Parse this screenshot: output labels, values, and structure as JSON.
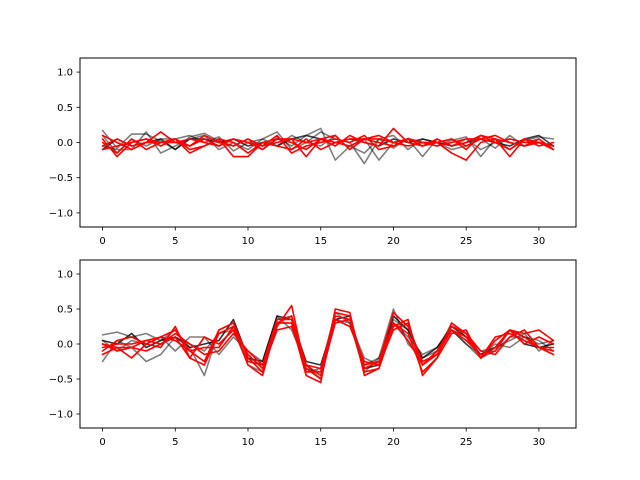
{
  "chart_data": [
    {
      "type": "line",
      "title": "",
      "xlabel": "",
      "ylabel": "",
      "xlim": [
        -1.55,
        32.55
      ],
      "ylim": [
        -1.2,
        1.2
      ],
      "xticks": [
        0,
        5,
        10,
        15,
        20,
        25,
        30
      ],
      "yticks": [
        -1.0,
        -0.5,
        0.0,
        0.5,
        1.0
      ],
      "x": [
        0,
        1,
        2,
        3,
        4,
        5,
        6,
        7,
        8,
        9,
        10,
        11,
        12,
        13,
        14,
        15,
        16,
        17,
        18,
        19,
        20,
        21,
        22,
        23,
        24,
        25,
        26,
        27,
        28,
        29,
        30,
        31
      ],
      "grid": false,
      "legend": "none",
      "series": [
        {
          "color": "#000000",
          "opacity": 0.5,
          "values": [
            0.17,
            -0.08,
            0.12,
            0.12,
            0.02,
            -0.1,
            0.08,
            0.13,
            0.02,
            -0.05,
            0.05,
            -0.1,
            0.07,
            -0.05,
            0.1,
            0.2,
            -0.25,
            -0.05,
            -0.15,
            0.05,
            -0.08,
            0.06,
            0.0,
            -0.05,
            0.03,
            0.08,
            -0.2,
            0.05,
            -0.1,
            0.03,
            0.08,
            0.05
          ]
        },
        {
          "color": "#000000",
          "opacity": 0.5,
          "values": [
            0.1,
            -0.15,
            0.05,
            -0.05,
            0.05,
            0.05,
            0.1,
            0.0,
            0.08,
            -0.12,
            0.0,
            0.05,
            0.15,
            -0.1,
            0.0,
            0.15,
            0.05,
            0.0,
            -0.3,
            0.05,
            0.1,
            -0.1,
            0.05,
            0.0,
            -0.1,
            -0.05,
            0.05,
            -0.08,
            0.1,
            -0.05,
            0.0,
            -0.05
          ]
        },
        {
          "color": "#000000",
          "opacity": 0.5,
          "values": [
            -0.05,
            -0.1,
            -0.1,
            0.15,
            -0.15,
            -0.05,
            0.05,
            0.1,
            -0.1,
            0.0,
            -0.1,
            0.05,
            -0.05,
            0.1,
            0.0,
            -0.05,
            0.1,
            -0.1,
            0.05,
            -0.25,
            0.0,
            0.05,
            -0.2,
            0.05,
            -0.05,
            0.05,
            -0.1,
            0.0,
            0.05,
            0.0,
            0.05,
            -0.1
          ]
        },
        {
          "color": "#000000",
          "opacity": 0.75,
          "values": [
            -0.1,
            0.05,
            -0.05,
            0.0,
            0.05,
            -0.1,
            0.05,
            0.05,
            0.0,
            0.05,
            -0.05,
            0.0,
            -0.05,
            0.05,
            0.1,
            0.05,
            0.0,
            0.05,
            0.0,
            -0.05,
            0.05,
            0.0,
            0.05,
            0.0,
            -0.05,
            0.0,
            0.05,
            0.0,
            -0.05,
            0.05,
            0.1,
            -0.05
          ]
        },
        {
          "color": "#ff0000",
          "opacity": 1,
          "values": [
            0.05,
            -0.2,
            0.0,
            0.05,
            -0.05,
            0.05,
            -0.05,
            0.05,
            -0.05,
            0.05,
            0.0,
            -0.1,
            0.05,
            0.0,
            -0.1,
            0.05,
            -0.05,
            0.1,
            0.0,
            -0.05,
            0.2,
            0.0,
            -0.05,
            0.05,
            -0.05,
            0.0,
            0.1,
            0.05,
            -0.2,
            0.05,
            -0.05,
            0.0
          ]
        },
        {
          "color": "#ff0000",
          "opacity": 1,
          "values": [
            0.0,
            -0.15,
            0.05,
            -0.1,
            0.0,
            0.05,
            -0.1,
            -0.05,
            0.05,
            0.0,
            -0.15,
            0.0,
            -0.05,
            -0.1,
            0.05,
            -0.1,
            0.0,
            -0.05,
            0.05,
            0.1,
            0.0,
            -0.05,
            0.0,
            0.0,
            -0.15,
            -0.25,
            0.0,
            0.05,
            0.0,
            -0.05,
            0.05,
            -0.1
          ]
        },
        {
          "color": "#ff0000",
          "opacity": 1,
          "values": [
            -0.05,
            0.05,
            -0.05,
            0.0,
            0.15,
            0.0,
            -0.05,
            0.1,
            0.0,
            -0.05,
            0.05,
            -0.05,
            0.1,
            -0.15,
            -0.05,
            0.0,
            0.05,
            0.0,
            0.1,
            -0.1,
            -0.05,
            0.05,
            0.0,
            0.0,
            0.05,
            -0.05,
            0.05,
            0.0,
            0.05,
            0.0,
            0.0,
            -0.05
          ]
        },
        {
          "color": "#ff0000",
          "opacity": 1,
          "values": [
            0.1,
            0.0,
            -0.1,
            0.0,
            0.0,
            0.05,
            -0.15,
            -0.05,
            0.05,
            -0.2,
            -0.2,
            0.0,
            0.05,
            0.05,
            -0.2,
            0.05,
            0.1,
            -0.1,
            0.05,
            0.05,
            0.0,
            0.05,
            -0.05,
            0.0,
            0.05,
            -0.1,
            0.1,
            0.0,
            -0.1,
            0.05,
            0.0,
            -0.05
          ]
        },
        {
          "color": "#ff0000",
          "opacity": 1,
          "values": [
            -0.1,
            -0.05,
            0.0,
            0.05,
            0.0,
            0.0,
            0.05,
            0.0,
            -0.05,
            0.05,
            0.0,
            -0.05,
            0.0,
            0.05,
            0.0,
            0.05,
            0.0,
            0.05,
            0.05,
            0.0,
            -0.05,
            0.05,
            0.0,
            -0.05,
            0.0,
            0.05,
            0.05,
            0.1,
            0.0,
            -0.05,
            0.0,
            -0.1
          ]
        }
      ]
    },
    {
      "type": "line",
      "title": "",
      "xlabel": "",
      "ylabel": "",
      "xlim": [
        -1.55,
        32.55
      ],
      "ylim": [
        -1.2,
        1.2
      ],
      "xticks": [
        0,
        5,
        10,
        15,
        20,
        25,
        30
      ],
      "yticks": [
        -1.0,
        -0.5,
        0.0,
        0.5,
        1.0
      ],
      "x": [
        0,
        1,
        2,
        3,
        4,
        5,
        6,
        7,
        8,
        9,
        10,
        11,
        12,
        13,
        14,
        15,
        16,
        17,
        18,
        19,
        20,
        21,
        22,
        23,
        24,
        25,
        26,
        27,
        28,
        29,
        30,
        31
      ],
      "grid": false,
      "legend": "none",
      "series": [
        {
          "color": "#000000",
          "opacity": 0.5,
          "values": [
            0.13,
            0.17,
            0.1,
            0.15,
            0.05,
            0.2,
            -0.05,
            -0.45,
            0.2,
            0.3,
            -0.2,
            -0.3,
            0.3,
            0.3,
            -0.35,
            -0.4,
            0.3,
            0.35,
            -0.3,
            -0.2,
            0.5,
            0.0,
            -0.2,
            -0.1,
            0.3,
            0.1,
            -0.1,
            -0.05,
            0.05,
            0.15,
            -0.1,
            0.05
          ]
        },
        {
          "color": "#000000",
          "opacity": 0.5,
          "values": [
            -0.25,
            0.05,
            -0.05,
            -0.25,
            -0.15,
            0.1,
            0.0,
            -0.1,
            0.15,
            0.2,
            -0.3,
            -0.4,
            0.35,
            0.4,
            -0.4,
            -0.35,
            0.45,
            0.3,
            -0.2,
            -0.3,
            0.35,
            0.2,
            -0.3,
            -0.1,
            0.2,
            0.0,
            -0.2,
            -0.1,
            0.1,
            0.1,
            0.05,
            -0.1
          ]
        },
        {
          "color": "#000000",
          "opacity": 0.5,
          "values": [
            0.05,
            -0.1,
            0.05,
            0.0,
            0.1,
            -0.1,
            0.1,
            0.1,
            -0.15,
            0.1,
            -0.1,
            -0.25,
            0.4,
            0.2,
            -0.3,
            -0.5,
            0.35,
            0.3,
            -0.4,
            -0.2,
            0.3,
            0.1,
            -0.15,
            -0.05,
            0.2,
            0.0,
            -0.15,
            0.0,
            -0.05,
            0.1,
            0.0,
            0.05
          ]
        },
        {
          "color": "#000000",
          "opacity": 0.8,
          "values": [
            0.05,
            0.0,
            0.15,
            -0.05,
            0.05,
            0.1,
            -0.05,
            0.0,
            0.05,
            0.35,
            -0.2,
            -0.25,
            0.4,
            0.35,
            -0.25,
            -0.3,
            0.35,
            0.4,
            -0.35,
            -0.3,
            0.4,
            0.2,
            -0.2,
            -0.05,
            0.25,
            0.1,
            -0.15,
            -0.05,
            0.2,
            0.0,
            -0.05,
            0.0
          ]
        },
        {
          "color": "#ff0000",
          "opacity": 1,
          "values": [
            0.0,
            -0.05,
            -0.2,
            0.0,
            -0.05,
            0.25,
            -0.2,
            -0.3,
            0.15,
            0.25,
            -0.3,
            -0.45,
            0.3,
            0.3,
            -0.45,
            -0.55,
            0.5,
            0.45,
            -0.45,
            -0.35,
            0.25,
            0.35,
            -0.45,
            -0.2,
            0.3,
            0.15,
            -0.2,
            -0.05,
            0.2,
            0.15,
            0.2,
            0.05
          ]
        },
        {
          "color": "#ff0000",
          "opacity": 1,
          "values": [
            -0.1,
            0.05,
            0.1,
            0.0,
            0.1,
            0.2,
            -0.1,
            -0.25,
            0.2,
            0.3,
            -0.2,
            -0.4,
            0.25,
            0.55,
            -0.4,
            -0.4,
            0.45,
            0.4,
            -0.35,
            -0.25,
            0.3,
            0.05,
            -0.3,
            -0.1,
            0.25,
            0.15,
            -0.1,
            -0.15,
            0.1,
            0.2,
            -0.05,
            -0.1
          ]
        },
        {
          "color": "#ff0000",
          "opacity": 1,
          "values": [
            0.0,
            -0.1,
            -0.05,
            -0.1,
            0.0,
            0.1,
            -0.2,
            0.1,
            0.0,
            0.2,
            -0.25,
            -0.3,
            0.35,
            0.35,
            -0.3,
            -0.35,
            0.4,
            0.35,
            -0.3,
            -0.25,
            0.45,
            0.25,
            -0.25,
            -0.15,
            0.2,
            0.1,
            -0.2,
            0.1,
            0.15,
            0.05,
            -0.05,
            -0.15
          ]
        },
        {
          "color": "#ff0000",
          "opacity": 1,
          "values": [
            -0.05,
            0.0,
            0.0,
            0.05,
            0.0,
            0.15,
            0.0,
            -0.15,
            -0.1,
            0.15,
            -0.1,
            -0.3,
            0.3,
            0.4,
            -0.3,
            -0.45,
            0.3,
            0.35,
            -0.4,
            -0.35,
            0.3,
            0.15,
            -0.4,
            -0.2,
            0.15,
            0.2,
            -0.2,
            0.05,
            0.2,
            0.0,
            0.1,
            0.0
          ]
        },
        {
          "color": "#ff0000",
          "opacity": 1,
          "values": [
            -0.15,
            -0.05,
            -0.05,
            0.05,
            0.1,
            0.05,
            -0.1,
            -0.05,
            -0.05,
            0.25,
            -0.15,
            -0.35,
            0.2,
            0.25,
            -0.35,
            -0.5,
            0.35,
            0.25,
            -0.25,
            -0.3,
            0.2,
            0.3,
            -0.3,
            -0.15,
            0.2,
            0.05,
            -0.15,
            -0.1,
            0.2,
            0.1,
            -0.05,
            -0.05
          ]
        }
      ]
    }
  ]
}
